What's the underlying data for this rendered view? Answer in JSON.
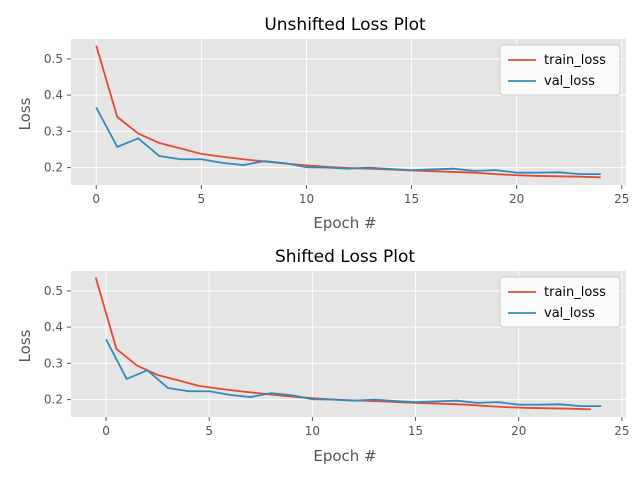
{
  "colors": {
    "panel_bg": "#e5e5e5",
    "grid": "#ffffff",
    "train": "#e24a33",
    "val": "#348abd",
    "legend_bg": "#ffffff"
  },
  "chart_data": [
    {
      "type": "line",
      "title": "Unshifted Loss Plot",
      "xlabel": "Epoch #",
      "ylabel": "Loss",
      "xlim": [
        -1.2,
        25.2
      ],
      "ylim": [
        0.152,
        0.555
      ],
      "xticks": [
        0,
        5,
        10,
        15,
        20,
        25
      ],
      "yticks": [
        0.2,
        0.3,
        0.4,
        0.5
      ],
      "grid": true,
      "legend": "upper right",
      "series": [
        {
          "name": "train_loss",
          "color": "#e24a33",
          "x": [
            0,
            1,
            2,
            3,
            4,
            5,
            6,
            7,
            8,
            9,
            10,
            11,
            12,
            13,
            14,
            15,
            16,
            17,
            18,
            19,
            20,
            21,
            22,
            23,
            24
          ],
          "y": [
            0.537,
            0.34,
            0.294,
            0.268,
            0.253,
            0.238,
            0.23,
            0.223,
            0.217,
            0.211,
            0.206,
            0.202,
            0.199,
            0.197,
            0.195,
            0.192,
            0.19,
            0.188,
            0.186,
            0.182,
            0.179,
            0.177,
            0.176,
            0.175,
            0.173
          ]
        },
        {
          "name": "val_loss",
          "color": "#348abd",
          "x": [
            0,
            1,
            2,
            3,
            4,
            5,
            6,
            7,
            8,
            9,
            10,
            11,
            12,
            13,
            14,
            15,
            16,
            17,
            18,
            19,
            20,
            21,
            22,
            23,
            24
          ],
          "y": [
            0.366,
            0.257,
            0.281,
            0.232,
            0.223,
            0.223,
            0.213,
            0.207,
            0.218,
            0.212,
            0.201,
            0.2,
            0.197,
            0.2,
            0.196,
            0.193,
            0.195,
            0.197,
            0.191,
            0.193,
            0.186,
            0.186,
            0.187,
            0.182,
            0.182
          ]
        }
      ]
    },
    {
      "type": "line",
      "title": "Shifted Loss Plot",
      "xlabel": "Epoch #",
      "ylabel": "Loss",
      "xlim": [
        -1.7,
        25.2
      ],
      "ylim": [
        0.152,
        0.555
      ],
      "xticks": [
        0,
        5,
        10,
        15,
        20,
        25
      ],
      "yticks": [
        0.2,
        0.3,
        0.4,
        0.5
      ],
      "grid": true,
      "legend": "upper right",
      "series": [
        {
          "name": "train_loss",
          "color": "#e24a33",
          "x": [
            -0.5,
            0.5,
            1.5,
            2.5,
            3.5,
            4.5,
            5.5,
            6.5,
            7.5,
            8.5,
            9.5,
            10.5,
            11.5,
            12.5,
            13.5,
            14.5,
            15.5,
            16.5,
            17.5,
            18.5,
            19.5,
            20.5,
            21.5,
            22.5,
            23.5
          ],
          "y": [
            0.537,
            0.34,
            0.294,
            0.268,
            0.253,
            0.238,
            0.23,
            0.223,
            0.217,
            0.211,
            0.206,
            0.202,
            0.199,
            0.197,
            0.195,
            0.192,
            0.19,
            0.188,
            0.186,
            0.182,
            0.179,
            0.177,
            0.176,
            0.175,
            0.173
          ]
        },
        {
          "name": "val_loss",
          "color": "#348abd",
          "x": [
            0,
            1,
            2,
            3,
            4,
            5,
            6,
            7,
            8,
            9,
            10,
            11,
            12,
            13,
            14,
            15,
            16,
            17,
            18,
            19,
            20,
            21,
            22,
            23,
            24
          ],
          "y": [
            0.366,
            0.257,
            0.281,
            0.232,
            0.223,
            0.223,
            0.213,
            0.207,
            0.218,
            0.212,
            0.201,
            0.2,
            0.197,
            0.2,
            0.196,
            0.193,
            0.195,
            0.197,
            0.191,
            0.193,
            0.186,
            0.186,
            0.187,
            0.182,
            0.182
          ]
        }
      ]
    }
  ]
}
